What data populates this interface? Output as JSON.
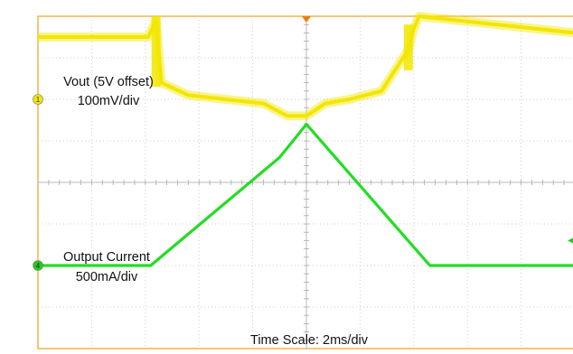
{
  "chart_data": {
    "type": "line",
    "xlabel": "Time Scale: 2ms/div",
    "x_unit": "ms",
    "x_per_div": 2,
    "xlim": [
      0,
      20
    ],
    "divisions": {
      "x": 10,
      "y": 8
    },
    "grid": true,
    "series": [
      {
        "label_line1": "Vout (5V offset)",
        "label_line2": "100mV/div",
        "color": "#f2e600",
        "marker": "1",
        "marker_color": "#f2e600",
        "x": [
          0,
          4.1,
          4.4,
          4.6,
          5.6,
          7.0,
          8.4,
          9.3,
          10.0,
          10.7,
          11.6,
          12.8,
          13.4,
          13.8,
          14.0,
          14.2,
          20.0
        ],
        "y": [
          7.5,
          7.5,
          7.9,
          6.4,
          6.1,
          6.0,
          5.9,
          5.6,
          5.6,
          5.9,
          6.0,
          6.2,
          6.8,
          7.2,
          7.7,
          8.0,
          7.6
        ]
      },
      {
        "label_line1": "Output Current",
        "label_line2": "500mA/div",
        "color": "#22dd22",
        "marker": "4",
        "marker_color": "#22cc22",
        "x": [
          0,
          4.2,
          9.0,
          10.0,
          14.6,
          20.0
        ],
        "y": [
          2.0,
          2.0,
          4.6,
          5.4,
          2.0,
          2.0
        ]
      }
    ],
    "text": {
      "xlabel": "Time Scale: 2ms/div"
    }
  }
}
